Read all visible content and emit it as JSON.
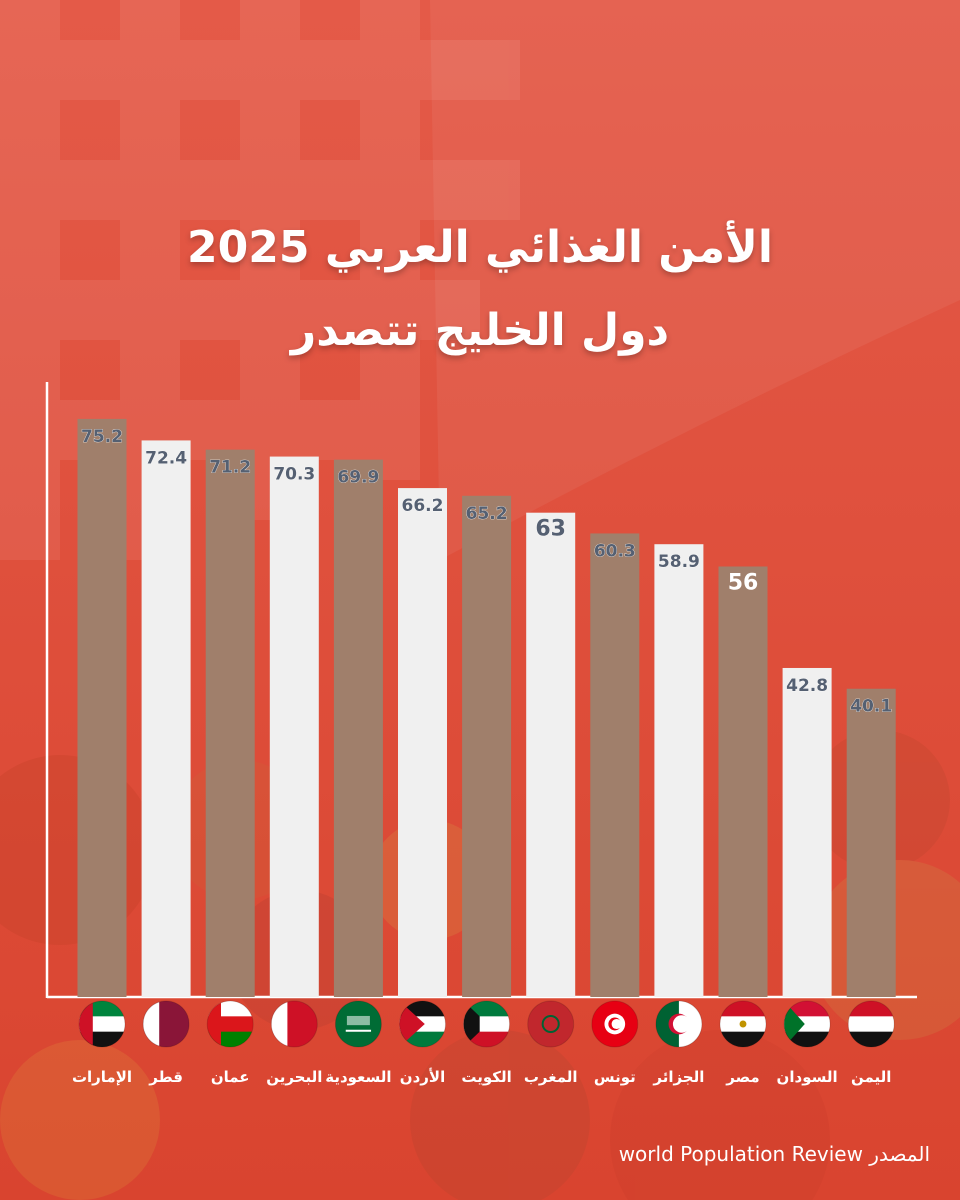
{
  "title": {
    "line1": "الأمن الغذائي العربي 2025",
    "line2": "دول الخليج تتصدر"
  },
  "source": {
    "label": "المصدر",
    "name": "world Population Review"
  },
  "colors": {
    "background": "#e2513f",
    "bar_brown": "#a07f6b",
    "bar_light": "#f0f0f0",
    "value_text": "#556072",
    "axis": "#ffffff"
  },
  "chart_data": {
    "type": "bar",
    "categories": [
      "الإمارات",
      "قطر",
      "عمان",
      "البحرين",
      "السعودية",
      "الأردن",
      "الكويت",
      "المغرب",
      "تونس",
      "الجزائر",
      "مصر",
      "السودان",
      "اليمن"
    ],
    "values": [
      75.2,
      72.4,
      71.2,
      70.3,
      69.9,
      66.2,
      65.2,
      63,
      60.3,
      58.9,
      56,
      42.8,
      40.1
    ],
    "value_labels": [
      "75.2",
      "72.4",
      "71.2",
      "70.3",
      "69.9",
      "66.2",
      "65.2",
      "63",
      "60.3",
      "58.9",
      "56",
      "42.8",
      "40.1"
    ],
    "flags": [
      "uae-flag",
      "qatar-flag",
      "oman-flag",
      "bahrain-flag",
      "saudi-flag",
      "jordan-flag",
      "kuwait-flag",
      "morocco-flag",
      "tunisia-flag",
      "algeria-flag",
      "egypt-flag",
      "sudan-flag",
      "yemen-flag"
    ],
    "bar_colors": [
      "brown",
      "light",
      "brown",
      "light",
      "brown",
      "light",
      "brown",
      "light",
      "brown",
      "light",
      "brown",
      "light",
      "brown"
    ],
    "ylim": [
      0,
      80
    ],
    "grid": false,
    "legend": "none"
  }
}
